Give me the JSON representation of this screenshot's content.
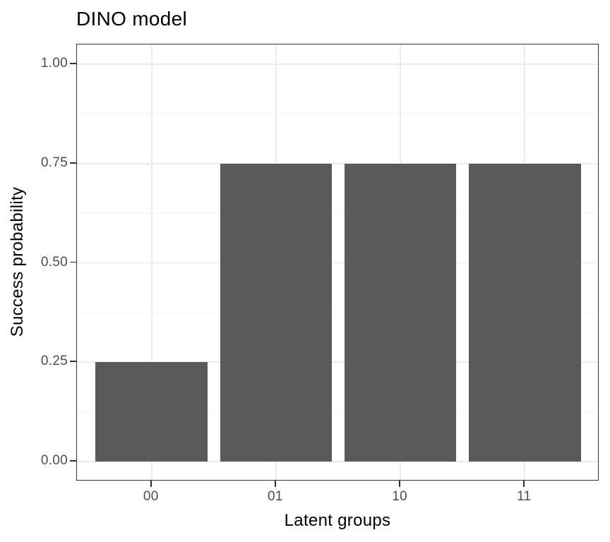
{
  "chart_data": {
    "type": "bar",
    "title": "DINO model",
    "xlabel": "Latent groups",
    "ylabel": "Success probability",
    "categories": [
      "00",
      "01",
      "10",
      "11"
    ],
    "values": [
      0.25,
      0.75,
      0.75,
      0.75
    ],
    "ylim": [
      0,
      1
    ],
    "y_major_breaks": [
      0,
      0.25,
      0.5,
      0.75,
      1.0
    ],
    "y_tick_labels": [
      "0.00",
      "0.25",
      "0.50",
      "0.75",
      "1.00"
    ],
    "y_minor_breaks": [
      0.125,
      0.375,
      0.625,
      0.875
    ],
    "grid": "major and minor horizontal, major vertical at category centers",
    "legend": "none",
    "colors": {
      "bar_fill": "#595959",
      "panel_border": "#333333",
      "tick_mark": "#333333",
      "grid_major": "#ebebeb",
      "grid_minor": "#f1f1f1",
      "axis_text": "#4d4d4d",
      "title_text": "#000000",
      "background": "#ffffff"
    }
  }
}
